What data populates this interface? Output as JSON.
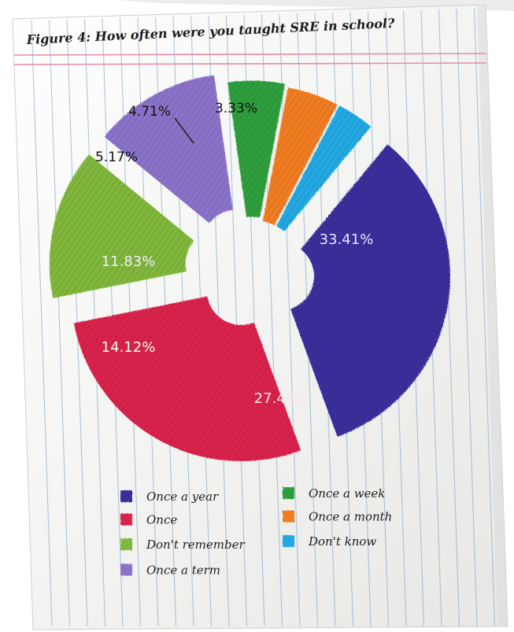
{
  "chart_data": {
    "type": "pie",
    "title": "Figure 4: How often were you taught SRE in school?",
    "slices": [
      {
        "label": "Once a year",
        "value": 33.41,
        "value_label": "33.41%",
        "color": "#3a2f9a"
      },
      {
        "label": "Once",
        "value": 27.44,
        "value_label": "27.44%",
        "color": "#d8244c"
      },
      {
        "label": "Don't remember",
        "value": 14.12,
        "value_label": "14.12%",
        "color": "#7fb63a"
      },
      {
        "label": "Once a term",
        "value": 11.83,
        "value_label": "11.83%",
        "color": "#8a72c8"
      },
      {
        "label": "Once a week",
        "value": 5.17,
        "value_label": "5.17%",
        "color": "#2e9e3e"
      },
      {
        "label": "Once a month",
        "value": 4.71,
        "value_label": "4.71%",
        "color": "#f07b23"
      },
      {
        "label": "Don't know",
        "value": 3.33,
        "value_label": "3.33%",
        "color": "#22a7e0"
      }
    ],
    "legend": {
      "placement": "bottom",
      "columns": [
        [
          "Once a year",
          "Once",
          "Don't remember",
          "Once a term"
        ],
        [
          "Once a week",
          "Once a month",
          "Don't know"
        ]
      ]
    }
  }
}
